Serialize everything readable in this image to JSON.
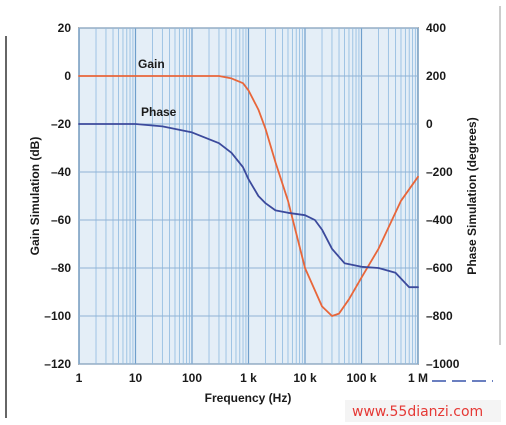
{
  "chart_data": {
    "type": "line",
    "xlabel": "Frequency (Hz)",
    "ylabel_left": "Gain Simulation (dB)",
    "ylabel_right": "Phase Simulation (degrees)",
    "x_scale": "log",
    "xlim": [
      1,
      1000000
    ],
    "ylim_left": [
      -120,
      20
    ],
    "ylim_right": [
      -1000,
      400
    ],
    "x_ticks": [
      {
        "value": 1,
        "label": "1"
      },
      {
        "value": 10,
        "label": "10"
      },
      {
        "value": 100,
        "label": "100"
      },
      {
        "value": 1000,
        "label": "1 k"
      },
      {
        "value": 10000,
        "label": "10 k"
      },
      {
        "value": 100000,
        "label": "100 k"
      },
      {
        "value": 1000000,
        "label": "1 M"
      }
    ],
    "y_ticks_left": [
      {
        "value": 20,
        "label": "20"
      },
      {
        "value": 0,
        "label": "0"
      },
      {
        "value": -20,
        "label": "–20"
      },
      {
        "value": -40,
        "label": "–40"
      },
      {
        "value": -60,
        "label": "–60"
      },
      {
        "value": -80,
        "label": "–80"
      },
      {
        "value": -100,
        "label": "–100"
      },
      {
        "value": -120,
        "label": "–120"
      }
    ],
    "y_ticks_right": [
      {
        "value": 400,
        "label": "400"
      },
      {
        "value": 200,
        "label": "200"
      },
      {
        "value": 0,
        "label": "0"
      },
      {
        "value": -200,
        "label": "–200"
      },
      {
        "value": -400,
        "label": "–400"
      },
      {
        "value": -600,
        "label": "–600"
      },
      {
        "value": -800,
        "label": "–800"
      },
      {
        "value": -1000,
        "label": "–1000"
      }
    ],
    "grid": true,
    "series": [
      {
        "name": "Gain",
        "axis": "left",
        "color": "#e8663a",
        "x": [
          1,
          10,
          100,
          300,
          500,
          800,
          1000,
          1500,
          2000,
          3000,
          5000,
          10000,
          20000,
          30000,
          40000,
          60000,
          100000,
          200000,
          500000,
          1000000
        ],
        "y": [
          0,
          0,
          0,
          0,
          -1,
          -3,
          -6,
          -14,
          -22,
          -36,
          -52,
          -80,
          -96,
          -100,
          -99,
          -93,
          -84,
          -72,
          -52,
          -42
        ]
      },
      {
        "name": "Phase",
        "axis": "right",
        "color": "#3c4a9c",
        "x": [
          1,
          10,
          30,
          100,
          300,
          500,
          800,
          1000,
          1500,
          2000,
          3000,
          5000,
          10000,
          15000,
          20000,
          30000,
          50000,
          100000,
          200000,
          400000,
          700000,
          1000000
        ],
        "y": [
          0,
          0,
          -10,
          -35,
          -80,
          -120,
          -180,
          -230,
          -300,
          -330,
          -360,
          -370,
          -380,
          -400,
          -440,
          -520,
          -580,
          -595,
          -600,
          -620,
          -680,
          -680
        ]
      }
    ]
  },
  "watermark": "www.55dianzi.com"
}
